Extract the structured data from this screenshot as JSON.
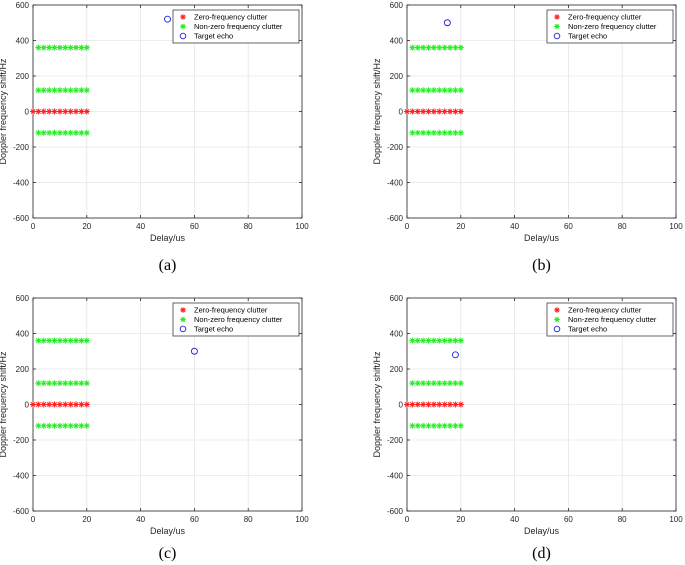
{
  "figure_title": "",
  "colors": {
    "zero_clutter": "#ff2020",
    "nonzero_clutter": "#22ee22",
    "target": "#2222dd",
    "grid": "#e6e6e6",
    "axis": "#262626"
  },
  "chart_data": [
    {
      "type": "scatter",
      "caption": "(a)",
      "xlabel": "Delay/us",
      "ylabel": "Doppler frequency shift/Hz",
      "xlim": [
        0,
        100
      ],
      "ylim": [
        -600,
        600
      ],
      "xticks": [
        "0",
        "20",
        "40",
        "60",
        "80",
        "100"
      ],
      "yticks": [
        "600",
        "400",
        "200",
        "0",
        "-200",
        "-400",
        "-600"
      ],
      "grid": true,
      "legend_position": "top-right",
      "series": [
        {
          "name": "Zero-frequency clutter",
          "marker": "asterisk",
          "color": "#ff2020",
          "points": [
            [
              0,
              0
            ],
            [
              2,
              0
            ],
            [
              4,
              0
            ],
            [
              6,
              0
            ],
            [
              8,
              0
            ],
            [
              10,
              0
            ],
            [
              12,
              0
            ],
            [
              14,
              0
            ],
            [
              16,
              0
            ],
            [
              18,
              0
            ],
            [
              20,
              0
            ]
          ]
        },
        {
          "name": "Non-zero frequency clutter",
          "marker": "asterisk",
          "color": "#22ee22",
          "points": [
            [
              2,
              360
            ],
            [
              4,
              360
            ],
            [
              6,
              360
            ],
            [
              8,
              360
            ],
            [
              10,
              360
            ],
            [
              12,
              360
            ],
            [
              14,
              360
            ],
            [
              16,
              360
            ],
            [
              18,
              360
            ],
            [
              20,
              360
            ],
            [
              2,
              120
            ],
            [
              4,
              120
            ],
            [
              6,
              120
            ],
            [
              8,
              120
            ],
            [
              10,
              120
            ],
            [
              12,
              120
            ],
            [
              14,
              120
            ],
            [
              16,
              120
            ],
            [
              18,
              120
            ],
            [
              20,
              120
            ],
            [
              2,
              -120
            ],
            [
              4,
              -120
            ],
            [
              6,
              -120
            ],
            [
              8,
              -120
            ],
            [
              10,
              -120
            ],
            [
              12,
              -120
            ],
            [
              14,
              -120
            ],
            [
              16,
              -120
            ],
            [
              18,
              -120
            ],
            [
              20,
              -120
            ]
          ]
        },
        {
          "name": "Target echo",
          "marker": "circle",
          "color": "#2222dd",
          "points": [
            [
              50,
              520
            ]
          ]
        }
      ]
    },
    {
      "type": "scatter",
      "caption": "(b)",
      "xlabel": "Delay/us",
      "ylabel": "Doppler frequency shift/Hz",
      "xlim": [
        0,
        100
      ],
      "ylim": [
        -600,
        600
      ],
      "xticks": [
        "0",
        "20",
        "40",
        "60",
        "80",
        "100"
      ],
      "yticks": [
        "600",
        "400",
        "200",
        "0",
        "-200",
        "-400",
        "-600"
      ],
      "grid": true,
      "legend_position": "top-right",
      "series": [
        {
          "name": "Zero-frequency clutter",
          "marker": "asterisk",
          "color": "#ff2020",
          "points": [
            [
              0,
              0
            ],
            [
              2,
              0
            ],
            [
              4,
              0
            ],
            [
              6,
              0
            ],
            [
              8,
              0
            ],
            [
              10,
              0
            ],
            [
              12,
              0
            ],
            [
              14,
              0
            ],
            [
              16,
              0
            ],
            [
              18,
              0
            ],
            [
              20,
              0
            ]
          ]
        },
        {
          "name": "Non-zero frequency clutter",
          "marker": "asterisk",
          "color": "#22ee22",
          "points": [
            [
              2,
              360
            ],
            [
              4,
              360
            ],
            [
              6,
              360
            ],
            [
              8,
              360
            ],
            [
              10,
              360
            ],
            [
              12,
              360
            ],
            [
              14,
              360
            ],
            [
              16,
              360
            ],
            [
              18,
              360
            ],
            [
              20,
              360
            ],
            [
              2,
              120
            ],
            [
              4,
              120
            ],
            [
              6,
              120
            ],
            [
              8,
              120
            ],
            [
              10,
              120
            ],
            [
              12,
              120
            ],
            [
              14,
              120
            ],
            [
              16,
              120
            ],
            [
              18,
              120
            ],
            [
              20,
              120
            ],
            [
              2,
              -120
            ],
            [
              4,
              -120
            ],
            [
              6,
              -120
            ],
            [
              8,
              -120
            ],
            [
              10,
              -120
            ],
            [
              12,
              -120
            ],
            [
              14,
              -120
            ],
            [
              16,
              -120
            ],
            [
              18,
              -120
            ],
            [
              20,
              -120
            ]
          ]
        },
        {
          "name": "Target echo",
          "marker": "circle",
          "color": "#2222dd",
          "points": [
            [
              15,
              500
            ]
          ]
        }
      ]
    },
    {
      "type": "scatter",
      "caption": "(c)",
      "xlabel": "Delay/us",
      "ylabel": "Doppler frequency shift/Hz",
      "xlim": [
        0,
        100
      ],
      "ylim": [
        -600,
        600
      ],
      "xticks": [
        "0",
        "20",
        "40",
        "60",
        "80",
        "100"
      ],
      "yticks": [
        "600",
        "400",
        "200",
        "0",
        "-200",
        "-400",
        "-600"
      ],
      "grid": true,
      "legend_position": "top-right",
      "series": [
        {
          "name": "Zero-frequency clutter",
          "marker": "asterisk",
          "color": "#ff2020",
          "points": [
            [
              0,
              0
            ],
            [
              2,
              0
            ],
            [
              4,
              0
            ],
            [
              6,
              0
            ],
            [
              8,
              0
            ],
            [
              10,
              0
            ],
            [
              12,
              0
            ],
            [
              14,
              0
            ],
            [
              16,
              0
            ],
            [
              18,
              0
            ],
            [
              20,
              0
            ]
          ]
        },
        {
          "name": "Non-zero frequency clutter",
          "marker": "asterisk",
          "color": "#22ee22",
          "points": [
            [
              2,
              360
            ],
            [
              4,
              360
            ],
            [
              6,
              360
            ],
            [
              8,
              360
            ],
            [
              10,
              360
            ],
            [
              12,
              360
            ],
            [
              14,
              360
            ],
            [
              16,
              360
            ],
            [
              18,
              360
            ],
            [
              20,
              360
            ],
            [
              2,
              120
            ],
            [
              4,
              120
            ],
            [
              6,
              120
            ],
            [
              8,
              120
            ],
            [
              10,
              120
            ],
            [
              12,
              120
            ],
            [
              14,
              120
            ],
            [
              16,
              120
            ],
            [
              18,
              120
            ],
            [
              20,
              120
            ],
            [
              2,
              -120
            ],
            [
              4,
              -120
            ],
            [
              6,
              -120
            ],
            [
              8,
              -120
            ],
            [
              10,
              -120
            ],
            [
              12,
              -120
            ],
            [
              14,
              -120
            ],
            [
              16,
              -120
            ],
            [
              18,
              -120
            ],
            [
              20,
              -120
            ]
          ]
        },
        {
          "name": "Target echo",
          "marker": "circle",
          "color": "#2222dd",
          "points": [
            [
              60,
              300
            ]
          ]
        }
      ]
    },
    {
      "type": "scatter",
      "caption": "(d)",
      "xlabel": "Delay/us",
      "ylabel": "Doppler frequency shift/Hz",
      "xlim": [
        0,
        100
      ],
      "ylim": [
        -600,
        600
      ],
      "xticks": [
        "0",
        "20",
        "40",
        "60",
        "80",
        "100"
      ],
      "yticks": [
        "600",
        "400",
        "200",
        "0",
        "-200",
        "-400",
        "-600"
      ],
      "grid": true,
      "legend_position": "top-right",
      "series": [
        {
          "name": "Zero-frequency clutter",
          "marker": "asterisk",
          "color": "#ff2020",
          "points": [
            [
              0,
              0
            ],
            [
              2,
              0
            ],
            [
              4,
              0
            ],
            [
              6,
              0
            ],
            [
              8,
              0
            ],
            [
              10,
              0
            ],
            [
              12,
              0
            ],
            [
              14,
              0
            ],
            [
              16,
              0
            ],
            [
              18,
              0
            ],
            [
              20,
              0
            ]
          ]
        },
        {
          "name": "Non-zero frequency clutter",
          "marker": "asterisk",
          "color": "#22ee22",
          "points": [
            [
              2,
              360
            ],
            [
              4,
              360
            ],
            [
              6,
              360
            ],
            [
              8,
              360
            ],
            [
              10,
              360
            ],
            [
              12,
              360
            ],
            [
              14,
              360
            ],
            [
              16,
              360
            ],
            [
              18,
              360
            ],
            [
              20,
              360
            ],
            [
              2,
              120
            ],
            [
              4,
              120
            ],
            [
              6,
              120
            ],
            [
              8,
              120
            ],
            [
              10,
              120
            ],
            [
              12,
              120
            ],
            [
              14,
              120
            ],
            [
              16,
              120
            ],
            [
              18,
              120
            ],
            [
              20,
              120
            ],
            [
              2,
              -120
            ],
            [
              4,
              -120
            ],
            [
              6,
              -120
            ],
            [
              8,
              -120
            ],
            [
              10,
              -120
            ],
            [
              12,
              -120
            ],
            [
              14,
              -120
            ],
            [
              16,
              -120
            ],
            [
              18,
              -120
            ],
            [
              20,
              -120
            ]
          ]
        },
        {
          "name": "Target echo",
          "marker": "circle",
          "color": "#2222dd",
          "points": [
            [
              18,
              280
            ]
          ]
        }
      ]
    }
  ]
}
